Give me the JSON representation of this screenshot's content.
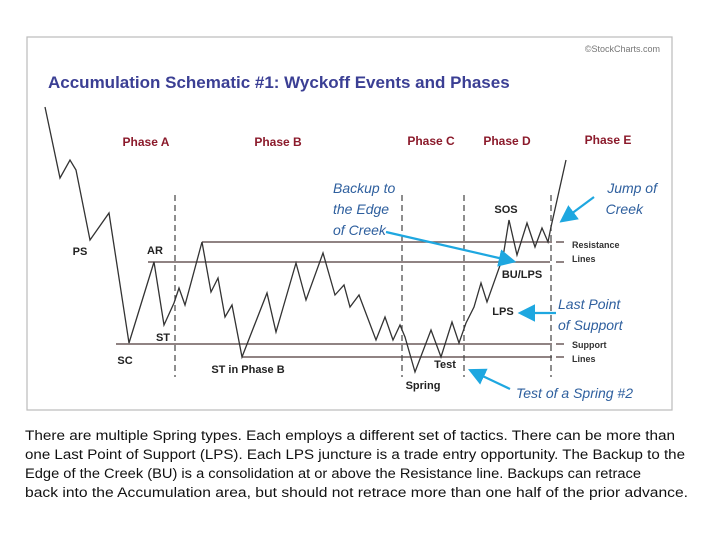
{
  "credit": "©StockCharts.com",
  "title": "Accumulation Schematic #1: Wyckoff Events and Phases",
  "phases": [
    "Phase A",
    "Phase B",
    "Phase C",
    "Phase D",
    "Phase E"
  ],
  "events": {
    "ps": "PS",
    "ar": "AR",
    "st": "ST",
    "sc": "SC",
    "st_phase_b": "ST in Phase B",
    "spring": "Spring",
    "test": "Test",
    "sos": "SOS",
    "bu_lps": "BU/LPS",
    "lps": "LPS"
  },
  "line_labels": {
    "resistance": [
      "Resistance",
      "Lines"
    ],
    "support": [
      "Support",
      "Lines"
    ]
  },
  "annotations": {
    "backup": [
      "Backup to",
      "the Edge",
      "of Creek"
    ],
    "jump": [
      "Jump of",
      "Creek"
    ],
    "last_point": [
      "Last Point",
      "of Support"
    ],
    "test_spring": "Test of a Spring #2"
  },
  "colors": {
    "title": "#3b3f94",
    "phase": "#8b1a2b",
    "annotation": "#2e5f9e",
    "arrow": "#1ea7e0",
    "lines": "#6b5a5a"
  },
  "caption": [
    "There are multiple Spring types. Each employs a different set of tactics. There can be more than",
    "one Last Point of Support (LPS). Each LPS juncture is a trade entry opportunity. The Backup to the",
    "Edge of the Creek (BU) is a consolidation at or above the Resistance line.  Backups can retrace",
    "back into the Accumulation area, but should not retrace more than one half of the prior advance."
  ]
}
